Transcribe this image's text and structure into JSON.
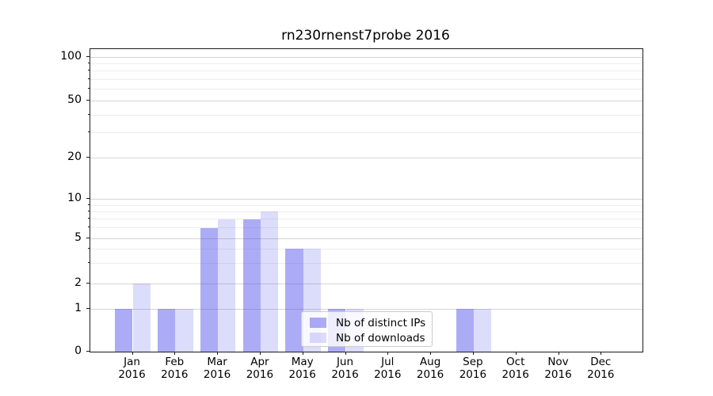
{
  "title": "rn230rnenst7probe 2016",
  "chart_data": {
    "type": "bar",
    "title": "rn230rnenst7probe 2016",
    "categories": [
      "Jan 2016",
      "Feb 2016",
      "Mar 2016",
      "Apr 2016",
      "May 2016",
      "Jun 2016",
      "Jul 2016",
      "Aug 2016",
      "Sep 2016",
      "Oct 2016",
      "Nov 2016",
      "Dec 2016"
    ],
    "x_tick_labels_line1": [
      "Jan",
      "Feb",
      "Mar",
      "Apr",
      "May",
      "Jun",
      "Jul",
      "Aug",
      "Sep",
      "Oct",
      "Nov",
      "Dec"
    ],
    "x_tick_labels_line2": [
      "2016",
      "2016",
      "2016",
      "2016",
      "2016",
      "2016",
      "2016",
      "2016",
      "2016",
      "2016",
      "2016",
      "2016"
    ],
    "series": [
      {
        "name": "Nb of distinct IPs",
        "color": "rgba(70,70,235,0.45)",
        "values": [
          1,
          1,
          6,
          7,
          4,
          1,
          0,
          0,
          1,
          0,
          0,
          0
        ]
      },
      {
        "name": "Nb of downloads",
        "color": "rgba(70,70,235,0.19)",
        "values": [
          2,
          1,
          7,
          8,
          4,
          1,
          0,
          0,
          1,
          0,
          0,
          0
        ]
      }
    ],
    "xlabel": "",
    "ylabel": "",
    "yscale": "log-like (0,1 then logarithmic)",
    "ylim": [
      0,
      110
    ],
    "y_major_ticks": [
      0,
      1,
      2,
      5,
      10,
      20,
      50,
      100
    ],
    "y_minor_ticks": [
      3,
      4,
      6,
      7,
      8,
      9,
      30,
      40,
      60,
      70,
      80,
      90
    ],
    "grid": "horizontal major+minor",
    "legend_position": "lower center inside plot",
    "colors": {
      "bar_distinct_ips": "rgba(70,70,235,0.45)",
      "bar_downloads": "rgba(70,70,235,0.19)",
      "grid_major": "#d4d4d4",
      "grid_minor": "#ededed",
      "spine": "#1a1a1a",
      "background": "#ffffff"
    }
  },
  "legend": {
    "items": [
      {
        "label": "Nb of distinct IPs"
      },
      {
        "label": "Nb of downloads"
      }
    ]
  }
}
